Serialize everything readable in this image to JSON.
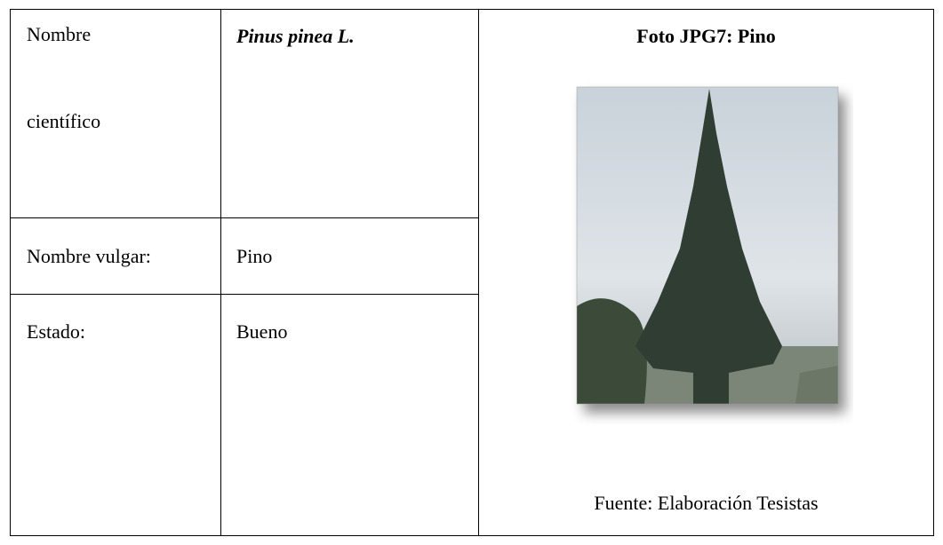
{
  "table": {
    "rows": [
      [
        "Nombre científico",
        "Pinus pinea L."
      ],
      [
        "Nombre vulgar:",
        "Pino"
      ],
      [
        "Estado:",
        "Bueno"
      ]
    ]
  },
  "photo": {
    "title": "Foto JPG7: Pino",
    "source": "Fuente: Elaboración Tesistas"
  }
}
